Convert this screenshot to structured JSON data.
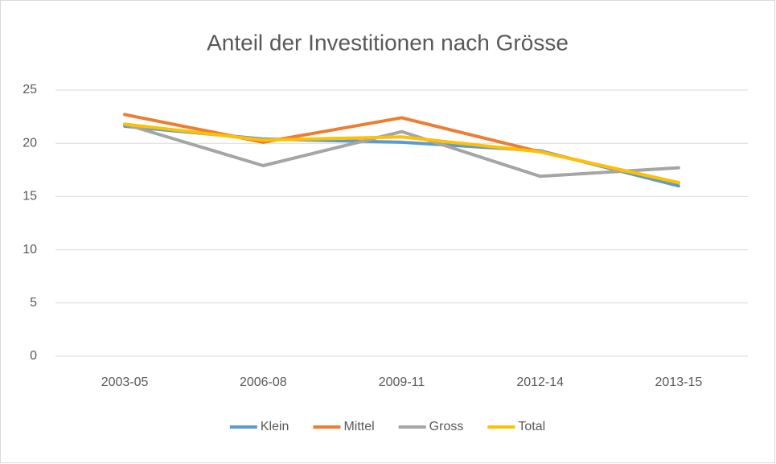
{
  "chart_data": {
    "type": "line",
    "title": "Anteil der Investitionen nach Grösse",
    "categories": [
      "2003-05",
      "2006-08",
      "2009-11",
      "2012-14",
      "2013-15"
    ],
    "series": [
      {
        "name": "Klein",
        "color": "#5b9bd5",
        "values": [
          21.6,
          20.4,
          20.1,
          19.3,
          16.0
        ]
      },
      {
        "name": "Mittel",
        "color": "#ed7d31",
        "values": [
          22.7,
          20.1,
          22.4,
          19.2,
          16.3
        ]
      },
      {
        "name": "Gross",
        "color": "#a5a5a5",
        "values": [
          21.8,
          17.9,
          21.1,
          16.9,
          17.7
        ]
      },
      {
        "name": "Total",
        "color": "#ffc000",
        "values": [
          21.8,
          20.3,
          20.6,
          19.2,
          16.3
        ]
      }
    ],
    "ylim": [
      0,
      25
    ],
    "yticks": [
      0,
      5,
      10,
      15,
      20,
      25
    ],
    "grid": true,
    "legend": "bottom"
  }
}
